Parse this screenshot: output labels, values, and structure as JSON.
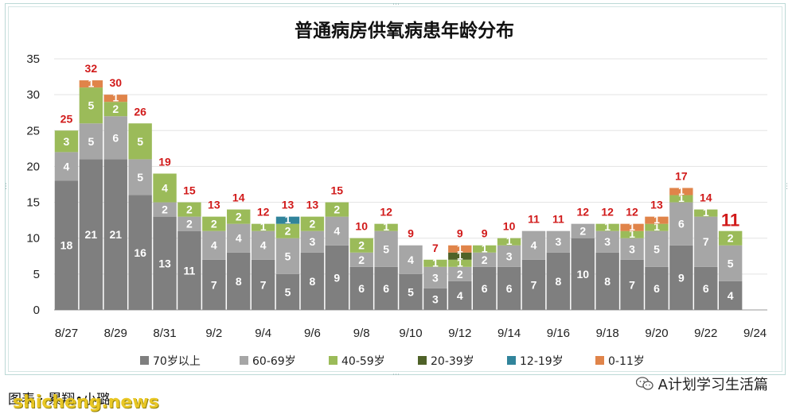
{
  "chart_data": {
    "type": "bar",
    "stacked": true,
    "title": "普通病房供氧病患年龄分布",
    "ylim": [
      0,
      35
    ],
    "yticks": [
      0,
      5,
      10,
      15,
      20,
      25,
      30,
      35
    ],
    "grid": true,
    "legend_position": "bottom",
    "categories": [
      "8/27",
      "8/28",
      "8/29",
      "8/30",
      "8/31",
      "9/1",
      "9/2",
      "9/3",
      "9/4",
      "9/5",
      "9/6",
      "9/7",
      "9/8",
      "9/9",
      "9/10",
      "9/11",
      "9/12",
      "9/13",
      "9/14",
      "9/15",
      "9/16",
      "9/17",
      "9/18",
      "9/19",
      "9/20",
      "9/21",
      "9/22",
      "9/23"
    ],
    "xtick_labels": [
      "8/27",
      "8/29",
      "8/31",
      "9/2",
      "9/4",
      "9/6",
      "9/8",
      "9/10",
      "9/12",
      "9/14",
      "9/16",
      "9/18",
      "9/20",
      "9/22",
      "9/24"
    ],
    "series": [
      {
        "name": "70岁以上",
        "color": "#7f7f7f",
        "values": [
          18,
          21,
          21,
          16,
          13,
          11,
          7,
          8,
          7,
          5,
          8,
          9,
          6,
          6,
          5,
          3,
          4,
          6,
          6,
          7,
          8,
          10,
          8,
          7,
          6,
          9,
          6,
          4
        ]
      },
      {
        "name": "60-69岁",
        "color": "#a6a6a6",
        "values": [
          4,
          5,
          6,
          5,
          2,
          2,
          4,
          4,
          4,
          5,
          3,
          4,
          2,
          5,
          4,
          3,
          2,
          2,
          3,
          4,
          3,
          2,
          3,
          3,
          5,
          6,
          7,
          5
        ]
      },
      {
        "name": "40-59岁",
        "color": "#9bbb59",
        "values": [
          3,
          5,
          2,
          5,
          4,
          2,
          2,
          2,
          1,
          2,
          2,
          2,
          2,
          1,
          0,
          1,
          1,
          1,
          1,
          0,
          0,
          0,
          1,
          1,
          1,
          1,
          1,
          2
        ]
      },
      {
        "name": "20-39岁",
        "color": "#4f6228",
        "values": [
          0,
          0,
          0,
          0,
          0,
          0,
          0,
          0,
          0,
          0,
          0,
          0,
          0,
          0,
          0,
          0,
          1,
          0,
          0,
          0,
          0,
          0,
          0,
          0,
          0,
          0,
          0,
          0
        ]
      },
      {
        "name": "12-19岁",
        "color": "#31849b",
        "values": [
          0,
          0,
          0,
          0,
          0,
          0,
          0,
          0,
          0,
          1,
          0,
          0,
          0,
          0,
          0,
          0,
          0,
          0,
          0,
          0,
          0,
          0,
          0,
          0,
          0,
          0,
          0,
          0
        ]
      },
      {
        "name": "0-11岁",
        "color": "#e0844a",
        "values": [
          0,
          1,
          1,
          0,
          0,
          0,
          0,
          0,
          0,
          0,
          0,
          0,
          0,
          0,
          0,
          0,
          1,
          0,
          0,
          0,
          0,
          0,
          0,
          1,
          1,
          1,
          0,
          0
        ]
      }
    ],
    "totals": [
      25,
      32,
      30,
      26,
      19,
      15,
      13,
      14,
      12,
      13,
      13,
      15,
      10,
      12,
      9,
      7,
      9,
      9,
      10,
      11,
      11,
      12,
      12,
      12,
      13,
      17,
      14,
      11
    ]
  },
  "footer": {
    "credit": "图表 · 累翔•小璐",
    "watermark": "shicheng.news",
    "wechat_account": "A计划学习生活篇",
    "wechat_icon": "wechat-icon"
  }
}
